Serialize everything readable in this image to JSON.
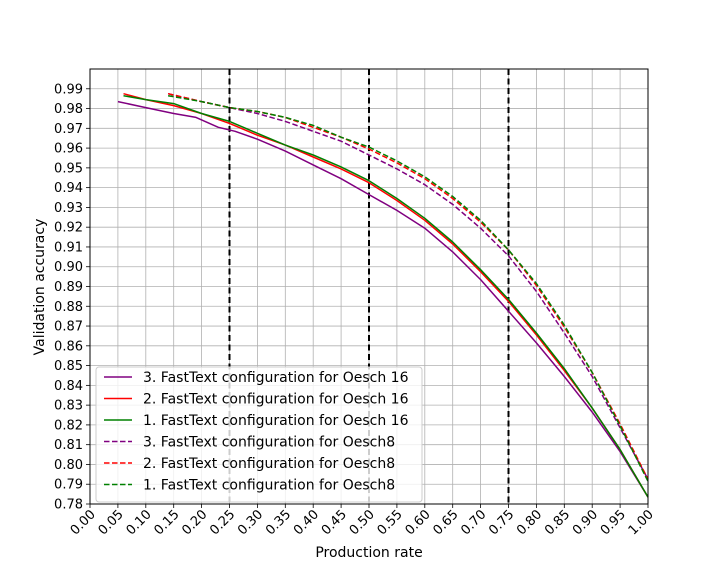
{
  "chart_data": {
    "type": "line",
    "xlabel": "Production rate",
    "ylabel": "Validation accuracy",
    "xlim": [
      0.0,
      1.0
    ],
    "ylim": [
      0.78,
      1.0
    ],
    "grid": true,
    "legend_position": "lower-left",
    "x_ticks": [
      "0.00",
      "0.05",
      "0.10",
      "0.15",
      "0.20",
      "0.25",
      "0.30",
      "0.35",
      "0.40",
      "0.45",
      "0.50",
      "0.55",
      "0.60",
      "0.65",
      "0.70",
      "0.75",
      "0.80",
      "0.85",
      "0.90",
      "0.95",
      "1.00"
    ],
    "y_ticks": [
      "0.78",
      "0.79",
      "0.80",
      "0.81",
      "0.82",
      "0.83",
      "0.84",
      "0.85",
      "0.86",
      "0.87",
      "0.88",
      "0.89",
      "0.90",
      "0.91",
      "0.92",
      "0.93",
      "0.94",
      "0.95",
      "0.96",
      "0.97",
      "0.98",
      "0.99"
    ],
    "vlines": [
      0.25,
      0.5,
      0.75
    ],
    "series": [
      {
        "name": "3. FastText configuration for Oesch 16",
        "color": "#800080",
        "dash": "solid",
        "x": [
          0.05,
          0.1,
          0.15,
          0.19,
          0.23,
          0.26,
          0.3,
          0.35,
          0.4,
          0.45,
          0.5,
          0.55,
          0.6,
          0.65,
          0.7,
          0.75,
          0.8,
          0.85,
          0.9,
          0.95,
          1.0
        ],
        "y": [
          0.9835,
          0.9805,
          0.9775,
          0.9755,
          0.9705,
          0.9685,
          0.9645,
          0.9585,
          0.9515,
          0.9445,
          0.9365,
          0.9285,
          0.9195,
          0.9075,
          0.8935,
          0.8775,
          0.8615,
          0.8445,
          0.8265,
          0.8065,
          0.7835
        ]
      },
      {
        "name": "2. FastText configuration for Oesch 16",
        "color": "#ff0000",
        "dash": "solid",
        "x": [
          0.06,
          0.1,
          0.15,
          0.2,
          0.25,
          0.3,
          0.35,
          0.4,
          0.45,
          0.5,
          0.55,
          0.6,
          0.65,
          0.7,
          0.75,
          0.8,
          0.85,
          0.9,
          0.95,
          1.0
        ],
        "y": [
          0.9875,
          0.9845,
          0.9815,
          0.9775,
          0.9725,
          0.9665,
          0.9615,
          0.9555,
          0.9495,
          0.9425,
          0.9335,
          0.9235,
          0.9115,
          0.8975,
          0.8825,
          0.8655,
          0.8475,
          0.8285,
          0.8075,
          0.7835
        ]
      },
      {
        "name": "1. FastText configuration for Oesch 16",
        "color": "#008000",
        "dash": "solid",
        "x": [
          0.06,
          0.1,
          0.15,
          0.2,
          0.25,
          0.3,
          0.35,
          0.4,
          0.45,
          0.5,
          0.55,
          0.6,
          0.65,
          0.7,
          0.75,
          0.8,
          0.85,
          0.9,
          0.95,
          1.0
        ],
        "y": [
          0.9865,
          0.9845,
          0.9825,
          0.9775,
          0.9735,
          0.9675,
          0.9615,
          0.9565,
          0.9505,
          0.9435,
          0.9345,
          0.9245,
          0.9125,
          0.8985,
          0.8835,
          0.8665,
          0.8485,
          0.8285,
          0.8075,
          0.7835
        ]
      },
      {
        "name": "3. FastText configuration for Oesch8",
        "color": "#800080",
        "dash": "dashed",
        "x": [
          0.14,
          0.2,
          0.25,
          0.3,
          0.35,
          0.4,
          0.45,
          0.5,
          0.55,
          0.6,
          0.65,
          0.7,
          0.75,
          0.8,
          0.85,
          0.9,
          0.95,
          1.0
        ],
        "y": [
          0.9875,
          0.9835,
          0.9805,
          0.9775,
          0.9735,
          0.9685,
          0.9635,
          0.9565,
          0.9495,
          0.9415,
          0.9315,
          0.9195,
          0.9055,
          0.8875,
          0.8665,
          0.8445,
          0.8185,
          0.7925
        ]
      },
      {
        "name": "2. FastText configuration for Oesch8",
        "color": "#ff0000",
        "dash": "dashed",
        "x": [
          0.14,
          0.2,
          0.25,
          0.3,
          0.35,
          0.4,
          0.45,
          0.5,
          0.55,
          0.6,
          0.65,
          0.7,
          0.75,
          0.8,
          0.85,
          0.9,
          0.95,
          1.0
        ],
        "y": [
          0.9875,
          0.9835,
          0.9805,
          0.9785,
          0.9755,
          0.9705,
          0.9655,
          0.9595,
          0.9525,
          0.9445,
          0.9345,
          0.9225,
          0.9085,
          0.8905,
          0.8695,
          0.8465,
          0.8205,
          0.7925
        ]
      },
      {
        "name": "1. FastText configuration for Oesch8",
        "color": "#008000",
        "dash": "dashed",
        "x": [
          0.14,
          0.2,
          0.25,
          0.3,
          0.35,
          0.4,
          0.45,
          0.5,
          0.55,
          0.6,
          0.65,
          0.7,
          0.75,
          0.8,
          0.85,
          0.9,
          0.95,
          1.0
        ],
        "y": [
          0.9865,
          0.9835,
          0.9805,
          0.9785,
          0.9755,
          0.9715,
          0.9655,
          0.9605,
          0.9535,
          0.9455,
          0.9355,
          0.9235,
          0.9085,
          0.8915,
          0.8705,
          0.8465,
          0.8195,
          0.7915
        ]
      }
    ]
  }
}
